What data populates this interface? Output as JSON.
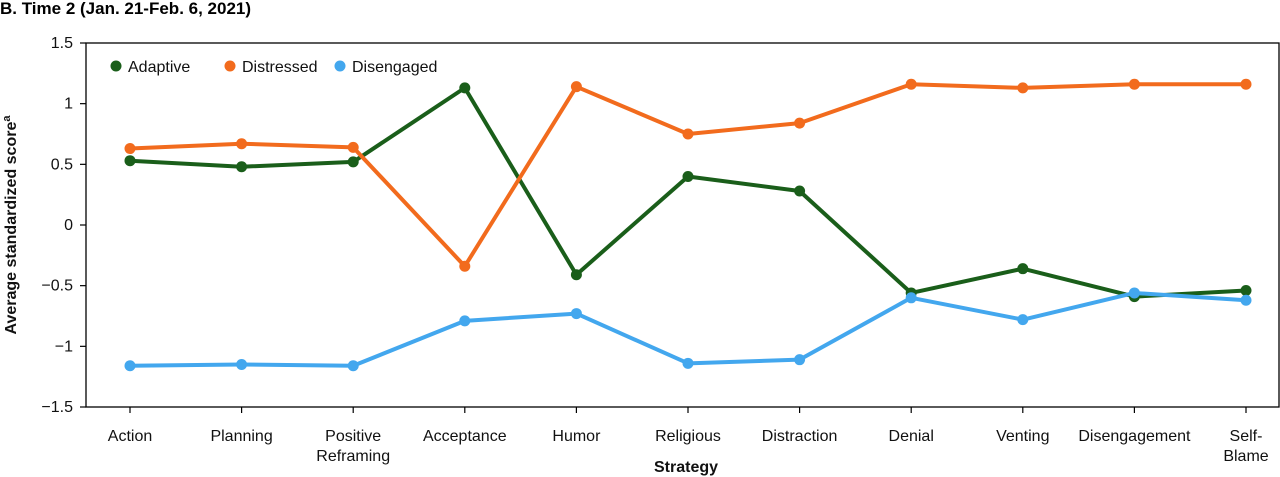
{
  "panel_title": "B. Time 2 (Jan. 21-Feb. 6, 2021)",
  "chart_data": {
    "type": "line",
    "xlabel": "Strategy",
    "ylabel": "Average standardized score",
    "ylabel_superscript": "a",
    "ylim": [
      -1.5,
      1.5
    ],
    "yticks": [
      1.5,
      1,
      0.5,
      0,
      -0.5,
      -1,
      -1.5
    ],
    "ytick_labels": [
      "1.5",
      "1",
      "0.5",
      "0",
      "−0.5",
      "−1",
      "−1.5"
    ],
    "grid": false,
    "legend_position": "top-left",
    "categories": [
      "Action",
      "Planning",
      "Positive\nReframing",
      "Acceptance",
      "Humor",
      "Religious",
      "Distraction",
      "Denial",
      "Venting",
      "Disengagement",
      "Self-\nBlame"
    ],
    "series": [
      {
        "name": "Adaptive",
        "color": "#1a5e1a",
        "values": [
          0.53,
          0.48,
          0.52,
          1.13,
          -0.41,
          0.4,
          0.28,
          -0.56,
          -0.36,
          -0.59,
          -0.54
        ]
      },
      {
        "name": "Distressed",
        "color": "#f26b1d",
        "values": [
          0.63,
          0.67,
          0.64,
          -0.34,
          1.14,
          0.75,
          0.84,
          1.16,
          1.13,
          1.16,
          1.16
        ]
      },
      {
        "name": "Disengaged",
        "color": "#43a7ee",
        "values": [
          -1.16,
          -1.15,
          -1.16,
          -0.79,
          -0.73,
          -1.14,
          -1.11,
          -0.6,
          -0.78,
          -0.56,
          -0.62
        ]
      }
    ]
  }
}
